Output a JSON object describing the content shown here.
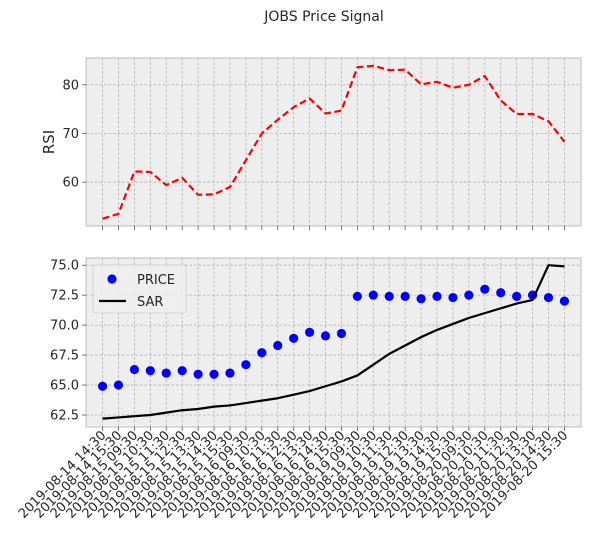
{
  "title": "JOBS Price Signal",
  "chart_data": [
    {
      "type": "line",
      "ylabel": "RSI",
      "ylim": [
        51,
        85.5
      ],
      "yticks": [
        60,
        70,
        80
      ],
      "grid": true,
      "series": [
        {
          "style": "dashed",
          "color": "#ff0000",
          "values": [
            52.5,
            53.5,
            62.2,
            62.1,
            59.4,
            60.9,
            57.4,
            57.5,
            59.0,
            64.5,
            70.0,
            72.8,
            75.4,
            77.2,
            74.1,
            74.7,
            83.6,
            83.9,
            83.0,
            83.1,
            80.1,
            80.6,
            79.4,
            80.0,
            81.8,
            76.8,
            74.0,
            74.0,
            72.5,
            68.3
          ]
        }
      ]
    },
    {
      "type": "scatter+line",
      "ylim": [
        61.5,
        75.6
      ],
      "yticks": [
        62.5,
        65.0,
        67.5,
        70.0,
        72.5,
        75.0
      ],
      "ytick_labels": [
        "62.5",
        "65.0",
        "67.5",
        "70.0",
        "72.5",
        "75.0"
      ],
      "grid": true,
      "legend_position": "top-left",
      "x_tick_labels": [
        "2019-08-14 14:30",
        "2019-08-14 15:30",
        "2019-08-15 09:30",
        "2019-08-15 10:30",
        "2019-08-15 11:30",
        "2019-08-15 12:30",
        "2019-08-15 13:30",
        "2019-08-15 14:30",
        "2019-08-15 15:30",
        "2019-08-16 09:30",
        "2019-08-16 10:30",
        "2019-08-16 11:30",
        "2019-08-16 12:30",
        "2019-08-16 13:30",
        "2019-08-16 14:30",
        "2019-08-16 15:30",
        "2019-08-19 09:30",
        "2019-08-19 10:30",
        "2019-08-19 11:30",
        "2019-08-19 12:30",
        "2019-08-19 13:30",
        "2019-08-19 14:30",
        "2019-08-19 15:30",
        "2019-08-20 09:30",
        "2019-08-20 10:30",
        "2019-08-20 11:30",
        "2019-08-20 12:30",
        "2019-08-20 13:30",
        "2019-08-20 14:30",
        "2019-08-20 15:30"
      ],
      "series": [
        {
          "name": "PRICE",
          "kind": "points",
          "color": "#0000ff",
          "values": [
            64.9,
            65.0,
            66.3,
            66.2,
            66.0,
            66.2,
            65.9,
            65.9,
            66.0,
            66.7,
            67.7,
            68.3,
            68.9,
            69.4,
            69.1,
            69.3,
            72.4,
            72.5,
            72.4,
            72.4,
            72.2,
            72.4,
            72.3,
            72.5,
            73.0,
            72.7,
            72.4,
            72.5,
            72.3,
            72.0
          ]
        },
        {
          "name": "SAR",
          "kind": "line",
          "color": "#000000",
          "values": [
            62.2,
            62.3,
            62.4,
            62.5,
            62.7,
            62.9,
            63.0,
            63.2,
            63.3,
            63.5,
            63.7,
            63.9,
            64.2,
            64.5,
            64.9,
            65.3,
            65.8,
            66.7,
            67.6,
            68.3,
            69.0,
            69.6,
            70.1,
            70.6,
            71.0,
            71.4,
            71.8,
            72.1,
            75.0,
            74.9
          ]
        }
      ]
    }
  ]
}
